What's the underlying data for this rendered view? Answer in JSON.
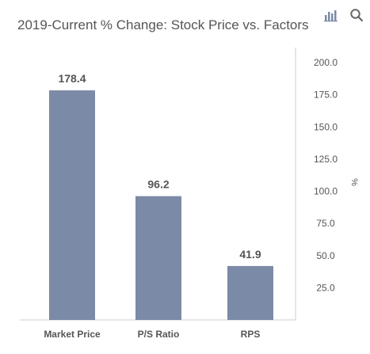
{
  "chart_data": {
    "type": "bar",
    "title": "2019-Current % Change: Stock Price vs. Factors",
    "categories": [
      "Market Price",
      "P/S Ratio",
      "RPS"
    ],
    "values": [
      178.4,
      96.2,
      41.9
    ],
    "data_labels": [
      "178.4",
      "96.2",
      "41.9"
    ],
    "ylabel": "%",
    "ylim": [
      0,
      200
    ],
    "y_ticks": [
      25,
      50,
      75,
      100,
      125,
      150,
      175,
      200
    ],
    "y_tick_labels": [
      "25.0",
      "50.0",
      "75.0",
      "100.0",
      "125.0",
      "150.0",
      "175.0",
      "200.0"
    ],
    "y_axis_side": "right",
    "grid": false,
    "colors": {
      "bar": "#7b8aa6",
      "label": "#555555",
      "axis": "#cccccc"
    }
  },
  "toolbar": {
    "chart_icon": "bar-chart-icon",
    "search_icon": "search-icon"
  }
}
